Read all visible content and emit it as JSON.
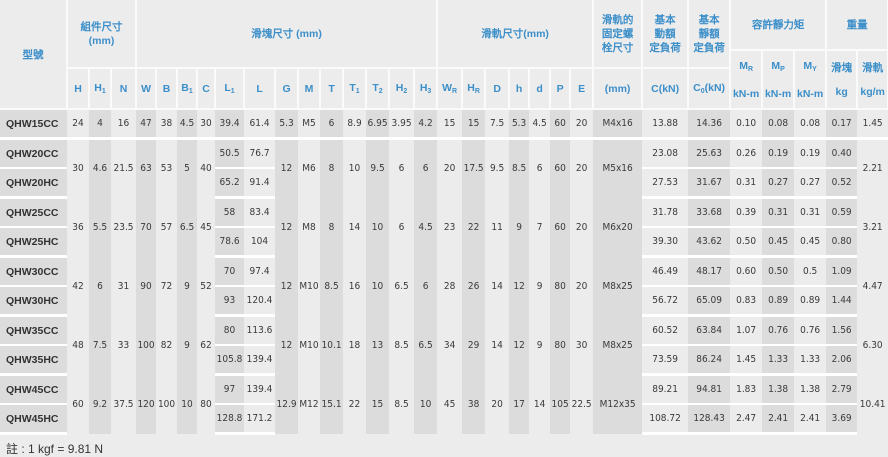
{
  "header": {
    "model": "型號",
    "assembly": "組件尺寸\n(mm)",
    "block": "滑塊尺寸 (mm)",
    "rail": "滑軌尺寸(mm)",
    "bolt": "滑軌的\n固定螺\n栓尺寸",
    "dynamic": "基本\n動額\n定負荷",
    "static": "基本\n靜額\n定負荷",
    "moment": "容許靜力矩",
    "weight": "重量",
    "columns": [
      {
        "label": "H"
      },
      {
        "label": "H",
        "sub": "1"
      },
      {
        "label": "N"
      },
      {
        "label": "W"
      },
      {
        "label": "B"
      },
      {
        "label": "B",
        "sub": "1"
      },
      {
        "label": "C"
      },
      {
        "label": "L",
        "sub": "1"
      },
      {
        "label": "L"
      },
      {
        "label": "G"
      },
      {
        "label": "M"
      },
      {
        "label": "T"
      },
      {
        "label": "T",
        "sub": "1"
      },
      {
        "label": "T",
        "sub": "2"
      },
      {
        "label": "H",
        "sub": "2"
      },
      {
        "label": "H",
        "sub": "3"
      },
      {
        "label": "W",
        "sub": "R"
      },
      {
        "label": "H",
        "sub": "R"
      },
      {
        "label": "D"
      },
      {
        "label": "h"
      },
      {
        "label": "d"
      },
      {
        "label": "P"
      },
      {
        "label": "E"
      },
      {
        "label": "(mm)"
      },
      {
        "label": "C(kN)"
      },
      {
        "label": "C",
        "sub": "0",
        "suffix": "(kN)"
      }
    ],
    "moment_cols": [
      {
        "label": "M",
        "sub": "R",
        "unit": "kN-m"
      },
      {
        "label": "M",
        "sub": "P",
        "unit": "kN-m"
      },
      {
        "label": "M",
        "sub": "Y",
        "unit": "kN-m"
      }
    ],
    "weight_cols": [
      {
        "label": "滑塊",
        "unit": "kg"
      },
      {
        "label": "滑軌",
        "unit": "kg/m"
      }
    ]
  },
  "series": [
    {
      "models": [
        {
          "name": "QHW15CC",
          "L1": "39.4",
          "L": "61.4",
          "C": "13.88",
          "C0": "14.36",
          "MR": "0.10",
          "MP": "0.08",
          "MY": "0.08",
          "kg": "0.17"
        }
      ],
      "shared": {
        "H": "24",
        "H1": "4",
        "N": "16",
        "W": "47",
        "B": "38",
        "B1": "4.5",
        "Cc": "30",
        "G": "5.3",
        "M": "M5",
        "T": "6",
        "T1": "8.9",
        "T2": "6.95",
        "H2": "3.95",
        "H3": "4.2",
        "WR": "15",
        "HR": "15",
        "D": "7.5",
        "h": "5.3",
        "d": "4.5",
        "P": "60",
        "E": "20",
        "bolt": "M4x16",
        "kgm": "1.45"
      }
    },
    {
      "models": [
        {
          "name": "QHW20CC",
          "L1": "50.5",
          "L": "76.7",
          "C": "23.08",
          "C0": "25.63",
          "MR": "0.26",
          "MP": "0.19",
          "MY": "0.19",
          "kg": "0.40"
        },
        {
          "name": "QHW20HC",
          "L1": "65.2",
          "L": "91.4",
          "C": "27.53",
          "C0": "31.67",
          "MR": "0.31",
          "MP": "0.27",
          "MY": "0.27",
          "kg": "0.52"
        }
      ],
      "shared": {
        "H": "30",
        "H1": "4.6",
        "N": "21.5",
        "W": "63",
        "B": "53",
        "B1": "5",
        "Cc": "40",
        "G": "12",
        "M": "M6",
        "T": "8",
        "T1": "10",
        "T2": "9.5",
        "H2": "6",
        "H3": "6",
        "WR": "20",
        "HR": "17.5",
        "D": "9.5",
        "h": "8.5",
        "d": "6",
        "P": "60",
        "E": "20",
        "bolt": "M5x16",
        "kgm": "2.21"
      }
    },
    {
      "models": [
        {
          "name": "QHW25CC",
          "L1": "58",
          "L": "83.4",
          "C": "31.78",
          "C0": "33.68",
          "MR": "0.39",
          "MP": "0.31",
          "MY": "0.31",
          "kg": "0.59"
        },
        {
          "name": "QHW25HC",
          "L1": "78.6",
          "L": "104",
          "C": "39.30",
          "C0": "43.62",
          "MR": "0.50",
          "MP": "0.45",
          "MY": "0.45",
          "kg": "0.80"
        }
      ],
      "shared": {
        "H": "36",
        "H1": "5.5",
        "N": "23.5",
        "W": "70",
        "B": "57",
        "B1": "6.5",
        "Cc": "45",
        "G": "12",
        "M": "M8",
        "T": "8",
        "T1": "14",
        "T2": "10",
        "H2": "6",
        "H3": "4.5",
        "WR": "23",
        "HR": "22",
        "D": "11",
        "h": "9",
        "d": "7",
        "P": "60",
        "E": "20",
        "bolt": "M6x20",
        "kgm": "3.21"
      }
    },
    {
      "models": [
        {
          "name": "QHW30CC",
          "L1": "70",
          "L": "97.4",
          "C": "46.49",
          "C0": "48.17",
          "MR": "0.60",
          "MP": "0.50",
          "MY": "0.5",
          "kg": "1.09"
        },
        {
          "name": "QHW30HC",
          "L1": "93",
          "L": "120.4",
          "C": "56.72",
          "C0": "65.09",
          "MR": "0.83",
          "MP": "0.89",
          "MY": "0.89",
          "kg": "1.44"
        }
      ],
      "shared": {
        "H": "42",
        "H1": "6",
        "N": "31",
        "W": "90",
        "B": "72",
        "B1": "9",
        "Cc": "52",
        "G": "12",
        "M": "M10",
        "T": "8.5",
        "T1": "16",
        "T2": "10",
        "H2": "6.5",
        "H3": "6",
        "WR": "28",
        "HR": "26",
        "D": "14",
        "h": "12",
        "d": "9",
        "P": "80",
        "E": "20",
        "bolt": "M8x25",
        "kgm": "4.47"
      }
    },
    {
      "models": [
        {
          "name": "QHW35CC",
          "L1": "80",
          "L": "113.6",
          "C": "60.52",
          "C0": "63.84",
          "MR": "1.07",
          "MP": "0.76",
          "MY": "0.76",
          "kg": "1.56"
        },
        {
          "name": "QHW35HC",
          "L1": "105.8",
          "L": "139.4",
          "C": "73.59",
          "C0": "86.24",
          "MR": "1.45",
          "MP": "1.33",
          "MY": "1.33",
          "kg": "2.06"
        }
      ],
      "shared": {
        "H": "48",
        "H1": "7.5",
        "N": "33",
        "W": "100",
        "B": "82",
        "B1": "9",
        "Cc": "62",
        "G": "12",
        "M": "M10",
        "T": "10.1",
        "T1": "18",
        "T2": "13",
        "H2": "8.5",
        "H3": "6.5",
        "WR": "34",
        "HR": "29",
        "D": "14",
        "h": "12",
        "d": "9",
        "P": "80",
        "E": "30",
        "bolt": "M8x25",
        "kgm": "6.30"
      }
    },
    {
      "models": [
        {
          "name": "QHW45CC",
          "L1": "97",
          "L": "139.4",
          "C": "89.21",
          "C0": "94.81",
          "MR": "1.83",
          "MP": "1.38",
          "MY": "1.38",
          "kg": "2.79"
        },
        {
          "name": "QHW45HC",
          "L1": "128.8",
          "L": "171.2",
          "C": "108.72",
          "C0": "128.43",
          "MR": "2.47",
          "MP": "2.41",
          "MY": "2.41",
          "kg": "3.69"
        }
      ],
      "shared": {
        "H": "60",
        "H1": "9.2",
        "N": "37.5",
        "W": "120",
        "B": "100",
        "B1": "10",
        "Cc": "80",
        "G": "12.9",
        "M": "M12",
        "T": "15.1",
        "T1": "22",
        "T2": "15",
        "H2": "8.5",
        "H3": "10",
        "WR": "45",
        "HR": "38",
        "D": "20",
        "h": "17",
        "d": "14",
        "P": "105",
        "E": "22.5",
        "bolt": "M12x35",
        "kgm": "10.41"
      }
    }
  ],
  "note": "註 : 1 kgf = 9.81 N"
}
